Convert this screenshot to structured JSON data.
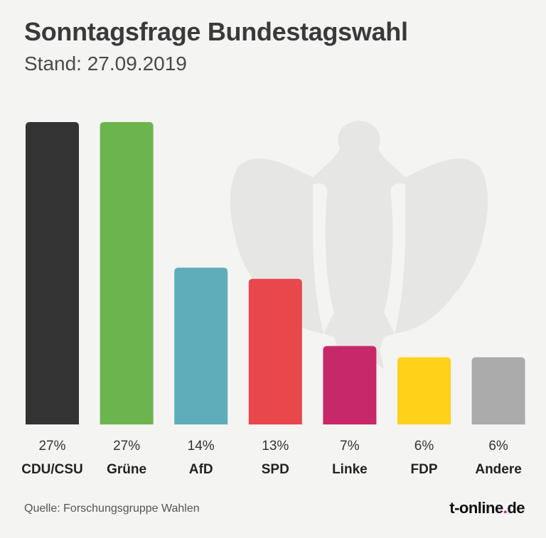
{
  "header": {
    "title": "Sonntagsfrage Bundestagswahl",
    "subtitle": "Stand: 27.09.2019"
  },
  "footer": {
    "source": "Quelle: Forschungsgruppe Wahlen",
    "brand_main": "t-online",
    "brand_dot": ".",
    "brand_tld": "de"
  },
  "background_emblem": "federal-eagle-icon",
  "chart_data": {
    "type": "bar",
    "categories": [
      "CDU/CSU",
      "Grüne",
      "AfD",
      "SPD",
      "Linke",
      "FDP",
      "Andere"
    ],
    "values": [
      27,
      27,
      14,
      13,
      7,
      6,
      6
    ],
    "value_labels": [
      "27%",
      "27%",
      "14%",
      "13%",
      "7%",
      "6%",
      "6%"
    ],
    "colors": [
      "#333333",
      "#6cb54e",
      "#5fadbb",
      "#e8474c",
      "#c7286a",
      "#ffd118",
      "#ababab"
    ],
    "ylim": [
      0,
      27
    ],
    "grid": false,
    "legend": "none"
  }
}
